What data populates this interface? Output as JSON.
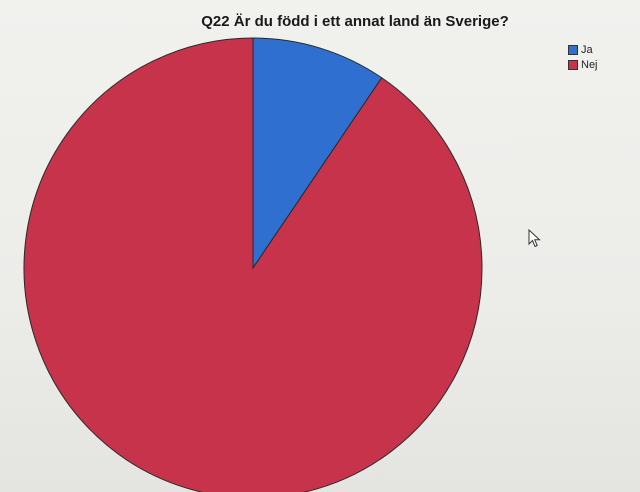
{
  "chart_data": {
    "type": "pie",
    "title": "Q22 Är du född i ett annat land än Sverige?",
    "categories": [
      "Ja",
      "Nej"
    ],
    "values": [
      9.5,
      90.5
    ],
    "colors": [
      "#2f6fcf",
      "#c6334a"
    ],
    "legend_position": "top-right"
  },
  "cursor_icon": "mouse-pointer-icon"
}
